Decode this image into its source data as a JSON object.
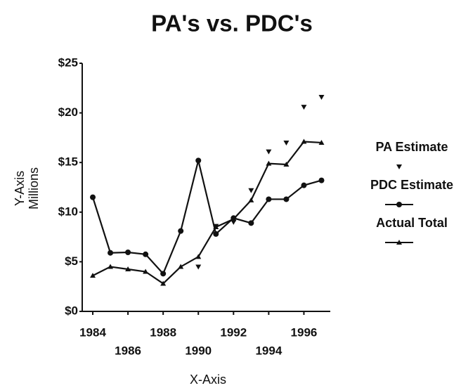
{
  "chart_data": {
    "type": "line",
    "title": "PA's vs. PDC's",
    "ylabel": [
      "Y-Axis",
      "Millions"
    ],
    "xlabel": "X-Axis",
    "x": [
      1984,
      1985,
      1986,
      1987,
      1988,
      1989,
      1990,
      1991,
      1992,
      1993,
      1994,
      1995,
      1996,
      1997
    ],
    "xlim": [
      1983.4,
      1997.5
    ],
    "xticks": [
      1984,
      1986,
      1988,
      1990,
      1992,
      1994,
      1996
    ],
    "ylim": [
      0,
      25
    ],
    "yticks": [
      {
        "value": 0,
        "label": "$0"
      },
      {
        "value": 5,
        "label": "$5"
      },
      {
        "value": 10,
        "label": "$10"
      },
      {
        "value": 15,
        "label": "$15"
      },
      {
        "value": 20,
        "label": "$20"
      },
      {
        "value": 25,
        "label": "$25"
      }
    ],
    "legend": "right",
    "series": [
      {
        "name": "PA Estimate",
        "color": "#111111",
        "marker": "triangle-down",
        "line": false,
        "values": [
          null,
          null,
          null,
          null,
          null,
          null,
          4.5,
          8.6,
          9.0,
          12.2,
          16.1,
          17.0,
          20.6,
          21.6
        ]
      },
      {
        "name": "PDC Estimate",
        "color": "#111111",
        "marker": "circle",
        "line": true,
        "values": [
          11.5,
          5.9,
          5.95,
          5.75,
          3.8,
          8.1,
          15.2,
          7.8,
          9.4,
          8.9,
          11.3,
          11.3,
          12.7,
          13.2
        ]
      },
      {
        "name": "Actual Total",
        "color": "#111111",
        "marker": "triangle-up",
        "line": true,
        "values": [
          3.6,
          4.5,
          4.25,
          4.0,
          2.8,
          4.5,
          5.5,
          8.5,
          9.3,
          11.2,
          14.9,
          14.8,
          17.1,
          17.0
        ]
      }
    ]
  }
}
